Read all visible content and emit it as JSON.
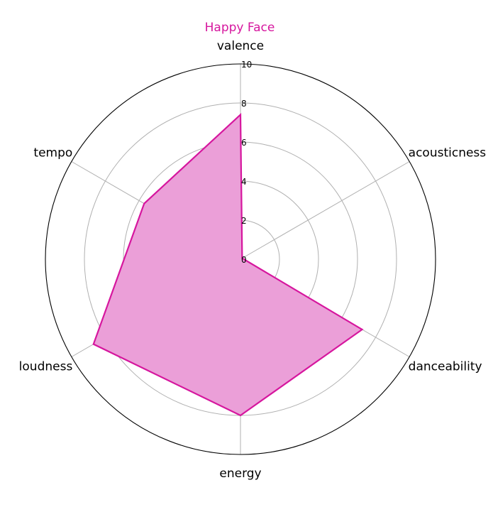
{
  "chart_data": {
    "type": "radar",
    "title": "Happy Face",
    "axes": [
      "valence",
      "acousticness",
      "danceability",
      "energy",
      "loudness",
      "tempo"
    ],
    "rlim": [
      0,
      10
    ],
    "r_ticks": [
      "0",
      "2",
      "4",
      "6",
      "8",
      "10"
    ],
    "grid": true,
    "series": [
      {
        "values": [
          7.4,
          0.1,
          7.2,
          8.0,
          8.7,
          5.7
        ],
        "color": "#d6169e",
        "fill_color": "#eb9fd8"
      }
    ]
  }
}
